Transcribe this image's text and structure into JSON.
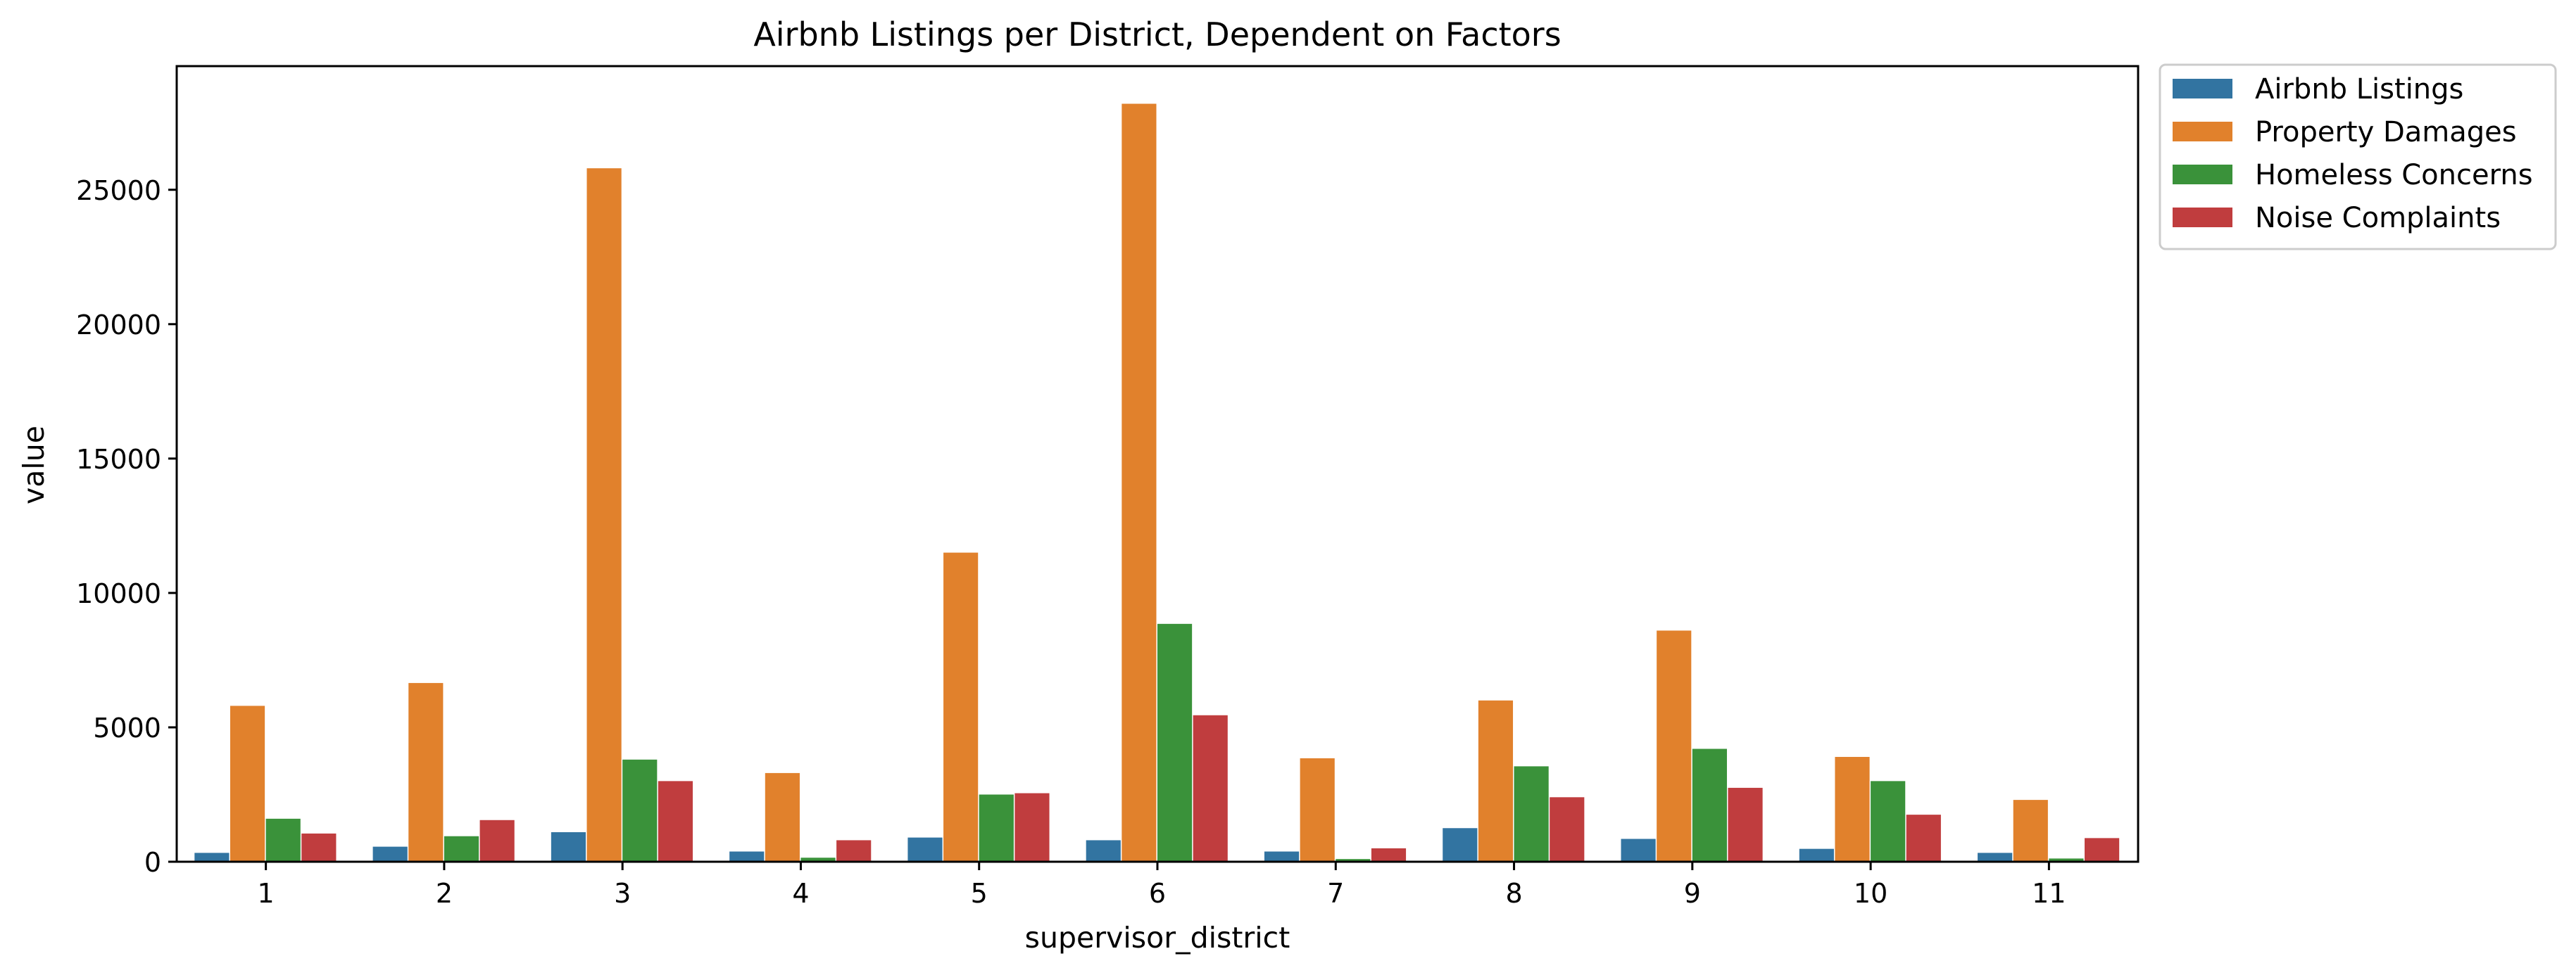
{
  "chart_data": {
    "type": "bar",
    "title": "Airbnb Listings per District, Dependent on Factors",
    "xlabel": "supervisor_district",
    "ylabel": "value",
    "categories": [
      "1",
      "2",
      "3",
      "4",
      "5",
      "6",
      "7",
      "8",
      "9",
      "10",
      "11"
    ],
    "ylim": [
      0,
      29600
    ],
    "yticks": [
      0,
      5000,
      10000,
      15000,
      20000,
      25000
    ],
    "ytick_labels": [
      "0",
      "5000",
      "10000",
      "15000",
      "20000",
      "25000"
    ],
    "grid": false,
    "legend_position": "outside-top-right",
    "series": [
      {
        "name": "Airbnb Listings",
        "color": "#3274a1",
        "values": [
          330,
          560,
          1100,
          380,
          900,
          800,
          380,
          1250,
          850,
          480,
          330
        ]
      },
      {
        "name": "Property Damages",
        "color": "#e1812c",
        "values": [
          5800,
          6650,
          25800,
          3300,
          11500,
          28200,
          3850,
          6000,
          8600,
          3900,
          2300
        ]
      },
      {
        "name": "Homeless Concerns",
        "color": "#3a923a",
        "values": [
          1600,
          950,
          3800,
          150,
          2500,
          8850,
          100,
          3550,
          4200,
          3000,
          120
        ]
      },
      {
        "name": "Noise Complaints",
        "color": "#c03d3e",
        "values": [
          1050,
          1550,
          3000,
          800,
          2550,
          5450,
          500,
          2400,
          2750,
          1750,
          880
        ]
      }
    ]
  }
}
